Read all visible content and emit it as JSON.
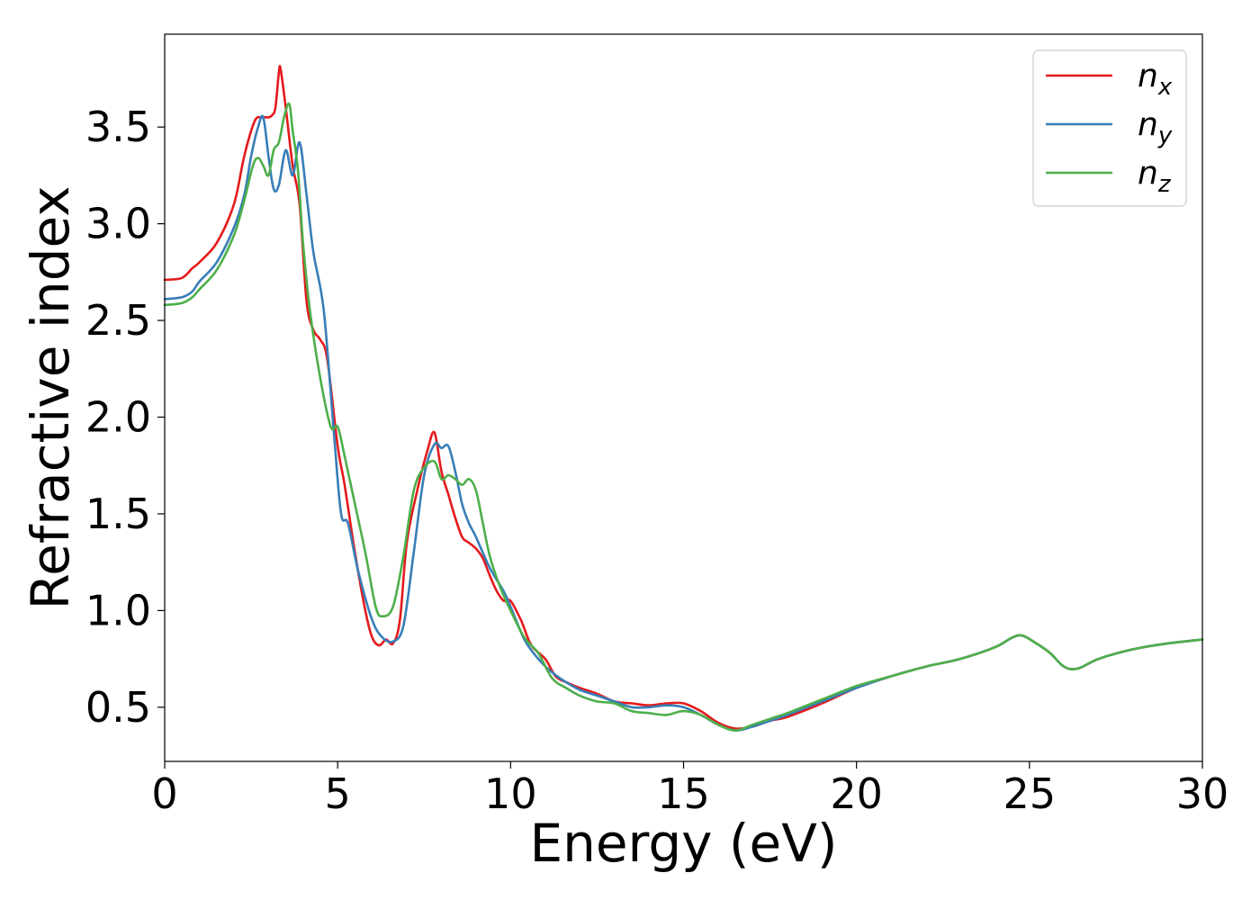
{
  "chart_data": {
    "type": "line",
    "title": "",
    "xlabel": "Energy (eV)",
    "ylabel": "Refractive index",
    "xlim": [
      0,
      30
    ],
    "ylim": [
      0.22,
      3.98
    ],
    "xticks": [
      0,
      5,
      10,
      15,
      20,
      25,
      30
    ],
    "yticks": [
      0.5,
      1.0,
      1.5,
      2.0,
      2.5,
      3.0,
      3.5
    ],
    "grid": false,
    "legend": {
      "position": "top-right"
    },
    "series": [
      {
        "name": "n_x",
        "label_base": "n",
        "label_sub": "x",
        "color": "#e41a1c",
        "x": [
          0,
          0.5,
          0.8,
          1.0,
          1.5,
          2.0,
          2.3,
          2.6,
          2.8,
          3.0,
          3.1,
          3.2,
          3.3,
          3.35,
          3.5,
          3.7,
          3.9,
          4.1,
          4.3,
          4.5,
          4.7,
          5.0,
          5.2,
          5.5,
          5.8,
          6.0,
          6.2,
          6.4,
          6.6,
          6.8,
          7.0,
          7.3,
          7.6,
          7.8,
          8.0,
          8.2,
          8.4,
          8.6,
          8.8,
          9.0,
          9.2,
          9.4,
          9.6,
          9.8,
          10.0,
          10.3,
          10.6,
          11.0,
          11.3,
          11.6,
          12.0,
          12.5,
          13.0,
          13.5,
          14.0,
          14.5,
          15.0,
          15.5,
          16.0,
          16.5,
          17.0,
          17.5,
          18.0,
          19.0,
          20.0,
          21.0,
          22.0,
          23.0,
          24.0,
          24.5,
          24.8,
          25.2,
          25.6,
          26.0,
          26.4,
          27.0,
          28.0,
          29.0,
          30.0
        ],
        "y": [
          2.71,
          2.72,
          2.77,
          2.8,
          2.9,
          3.1,
          3.35,
          3.53,
          3.55,
          3.55,
          3.56,
          3.6,
          3.78,
          3.8,
          3.6,
          3.3,
          3.1,
          2.6,
          2.45,
          2.4,
          2.3,
          1.85,
          1.65,
          1.3,
          1.0,
          0.86,
          0.82,
          0.85,
          0.83,
          0.95,
          1.35,
          1.62,
          1.83,
          1.92,
          1.72,
          1.6,
          1.48,
          1.38,
          1.35,
          1.32,
          1.27,
          1.18,
          1.1,
          1.05,
          1.05,
          0.95,
          0.82,
          0.75,
          0.66,
          0.63,
          0.6,
          0.57,
          0.53,
          0.52,
          0.51,
          0.52,
          0.52,
          0.48,
          0.42,
          0.39,
          0.4,
          0.43,
          0.45,
          0.52,
          0.6,
          0.66,
          0.71,
          0.75,
          0.81,
          0.86,
          0.87,
          0.83,
          0.78,
          0.71,
          0.7,
          0.75,
          0.8,
          0.83,
          0.85
        ]
      },
      {
        "name": "n_y",
        "label_base": "n",
        "label_sub": "y",
        "color": "#377eb8",
        "x": [
          0,
          0.5,
          0.8,
          1.0,
          1.5,
          2.0,
          2.3,
          2.5,
          2.7,
          2.85,
          3.0,
          3.15,
          3.3,
          3.5,
          3.7,
          3.9,
          4.1,
          4.3,
          4.6,
          4.9,
          5.1,
          5.3,
          5.6,
          6.0,
          6.3,
          6.6,
          6.9,
          7.2,
          7.5,
          7.8,
          8.0,
          8.2,
          8.4,
          8.6,
          8.8,
          9.0,
          9.4,
          9.8,
          10.0,
          10.4,
          10.8,
          11.2,
          11.6,
          12.0,
          12.5,
          13.0,
          13.5,
          14.0,
          14.5,
          15.0,
          15.5,
          16.0,
          16.5,
          17.0,
          17.5,
          18.0,
          19.0,
          20.0,
          21.0,
          22.0,
          23.0,
          24.0,
          24.5,
          24.8,
          25.2,
          25.6,
          26.0,
          26.4,
          27.0,
          28.0,
          29.0,
          30.0
        ],
        "y": [
          2.61,
          2.62,
          2.65,
          2.7,
          2.8,
          2.98,
          3.15,
          3.35,
          3.5,
          3.55,
          3.35,
          3.18,
          3.2,
          3.38,
          3.25,
          3.42,
          3.15,
          2.85,
          2.55,
          1.9,
          1.5,
          1.45,
          1.2,
          0.95,
          0.86,
          0.84,
          0.92,
          1.3,
          1.7,
          1.86,
          1.84,
          1.85,
          1.72,
          1.55,
          1.45,
          1.38,
          1.22,
          1.1,
          1.02,
          0.85,
          0.75,
          0.68,
          0.63,
          0.59,
          0.56,
          0.53,
          0.5,
          0.5,
          0.51,
          0.5,
          0.46,
          0.41,
          0.38,
          0.4,
          0.43,
          0.46,
          0.53,
          0.6,
          0.66,
          0.71,
          0.75,
          0.81,
          0.86,
          0.87,
          0.83,
          0.78,
          0.71,
          0.7,
          0.75,
          0.8,
          0.83,
          0.85
        ]
      },
      {
        "name": "n_z",
        "label_base": "n",
        "label_sub": "z",
        "color": "#4daf4a",
        "x": [
          0,
          0.5,
          0.8,
          1.0,
          1.5,
          2.0,
          2.3,
          2.55,
          2.7,
          2.85,
          3.0,
          3.15,
          3.3,
          3.45,
          3.6,
          3.7,
          3.85,
          4.0,
          4.2,
          4.5,
          4.8,
          5.0,
          5.2,
          5.5,
          5.8,
          6.1,
          6.3,
          6.6,
          6.9,
          7.2,
          7.5,
          7.8,
          8.0,
          8.2,
          8.4,
          8.6,
          8.8,
          9.0,
          9.2,
          9.4,
          9.7,
          10.0,
          10.4,
          10.8,
          11.2,
          11.6,
          12.0,
          12.5,
          13.0,
          13.5,
          14.0,
          14.5,
          15.0,
          15.5,
          16.0,
          16.5,
          17.0,
          17.5,
          18.0,
          19.0,
          20.0,
          21.0,
          22.0,
          23.0,
          24.0,
          24.5,
          24.8,
          25.2,
          25.6,
          26.0,
          26.4,
          27.0,
          28.0,
          29.0,
          30.0
        ],
        "y": [
          2.58,
          2.59,
          2.62,
          2.66,
          2.76,
          2.94,
          3.12,
          3.3,
          3.34,
          3.3,
          3.25,
          3.38,
          3.42,
          3.55,
          3.62,
          3.48,
          3.28,
          2.9,
          2.55,
          2.2,
          1.95,
          1.95,
          1.8,
          1.55,
          1.3,
          1.02,
          0.97,
          1.02,
          1.28,
          1.62,
          1.74,
          1.77,
          1.68,
          1.7,
          1.68,
          1.65,
          1.68,
          1.62,
          1.45,
          1.28,
          1.12,
          1.0,
          0.86,
          0.78,
          0.65,
          0.6,
          0.56,
          0.53,
          0.52,
          0.48,
          0.47,
          0.46,
          0.48,
          0.46,
          0.41,
          0.38,
          0.41,
          0.44,
          0.47,
          0.54,
          0.61,
          0.66,
          0.71,
          0.75,
          0.81,
          0.86,
          0.87,
          0.83,
          0.78,
          0.71,
          0.7,
          0.75,
          0.8,
          0.83,
          0.85
        ]
      }
    ]
  }
}
